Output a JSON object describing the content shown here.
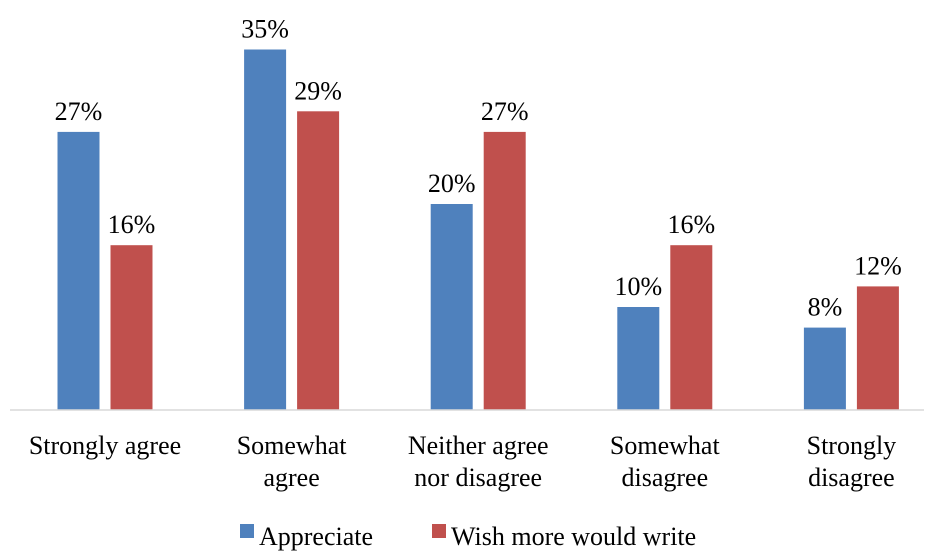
{
  "chart_data": {
    "type": "bar",
    "title": "",
    "xlabel": "",
    "ylabel": "",
    "ylim": [
      0,
      35
    ],
    "grid": false,
    "legend_position": "bottom",
    "categories": [
      "Strongly agree",
      "Somewhat agree",
      "Neither agree nor disagree",
      "Somewhat disagree",
      "Strongly disagree"
    ],
    "category_label_lines": [
      [
        "Strongly agree"
      ],
      [
        "Somewhat",
        "agree"
      ],
      [
        "Neither agree",
        "nor disagree"
      ],
      [
        "Somewhat",
        "disagree"
      ],
      [
        "Strongly",
        "disagree"
      ]
    ],
    "series": [
      {
        "name": "Appreciate",
        "color": "#4F81BD",
        "values": [
          27,
          35,
          20,
          10,
          8
        ],
        "labels": [
          "27%",
          "35%",
          "20%",
          "10%",
          "8%"
        ]
      },
      {
        "name": "Wish more would write",
        "color": "#C0504D",
        "values": [
          16,
          29,
          27,
          16,
          12
        ],
        "labels": [
          "16%",
          "29%",
          "27%",
          "16%",
          "12%"
        ]
      }
    ]
  }
}
